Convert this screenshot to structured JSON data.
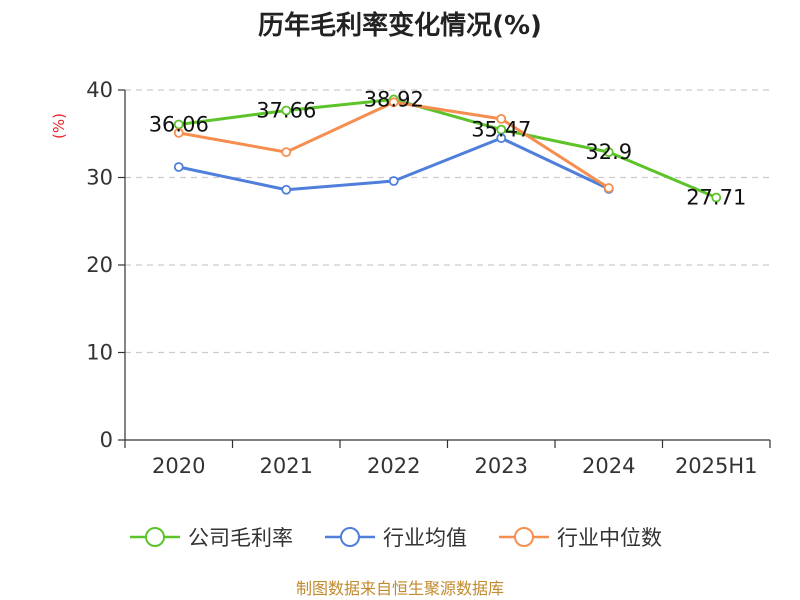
{
  "chart_data": {
    "type": "line",
    "title": "历年毛利率变化情况(%)",
    "ylabel": "(%)",
    "xlabel": "",
    "ylim": [
      0,
      40
    ],
    "yticks": [
      0,
      10,
      20,
      30,
      40
    ],
    "categories": [
      "2020",
      "2021",
      "2022",
      "2023",
      "2024",
      "2025H1"
    ],
    "grid": true,
    "legend_position": "bottom",
    "series": [
      {
        "name": "公司毛利率",
        "color": "#5cc32a",
        "values": [
          36.06,
          37.66,
          38.92,
          35.47,
          32.9,
          27.71
        ],
        "labels": [
          "36.06",
          "37.66",
          "38.92",
          "35.47",
          "32.9",
          "27.71"
        ]
      },
      {
        "name": "行业均值",
        "color": "#4f7fda",
        "values": [
          31.2,
          28.6,
          29.6,
          34.5,
          28.7,
          null
        ]
      },
      {
        "name": "行业中位数",
        "color": "#f58e4f",
        "values": [
          35.1,
          32.9,
          38.6,
          36.7,
          28.8,
          null
        ]
      }
    ]
  },
  "source": "制图数据来自恒生聚源数据库"
}
